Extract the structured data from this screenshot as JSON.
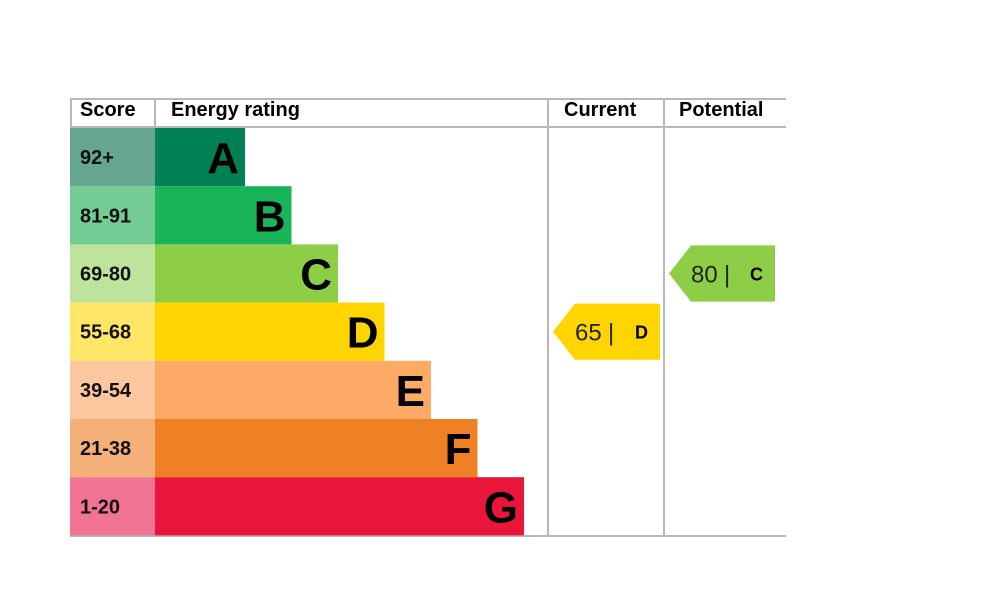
{
  "headers": {
    "score": "Score",
    "energy_rating": "Energy rating",
    "current": "Current",
    "potential": "Potential"
  },
  "chart_data": {
    "type": "bar",
    "categories": [
      "A",
      "B",
      "C",
      "D",
      "E",
      "F",
      "G"
    ],
    "score_ranges": [
      "92+",
      "81-91",
      "69-80",
      "55-68",
      "39-54",
      "21-38",
      "1-20"
    ],
    "band_colors": [
      "#008054",
      "#19b459",
      "#8dce46",
      "#ffd500",
      "#fcaa65",
      "#ef8023",
      "#e9153b"
    ],
    "score_cell_colors": [
      "#66a68e",
      "#74cc94",
      "#bde49a",
      "#ffe667",
      "#fdc8a0",
      "#f5b07a",
      "#f07393"
    ],
    "current": {
      "value": 65,
      "band": "D"
    },
    "potential": {
      "value": 80,
      "band": "C"
    }
  }
}
